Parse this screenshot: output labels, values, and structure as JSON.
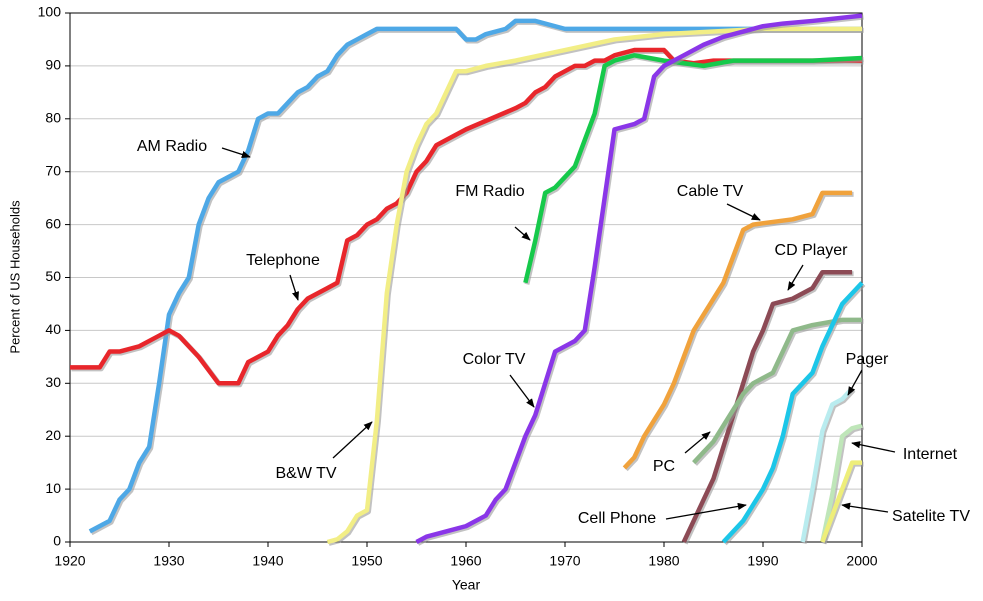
{
  "chart_data": {
    "type": "line",
    "xlabel": "Year",
    "ylabel": "Percent of US Households",
    "xlim": [
      1920,
      2000
    ],
    "xticks": [
      1920,
      1930,
      1940,
      1950,
      1960,
      1970,
      1980,
      1990,
      2000
    ],
    "ylim": [
      0,
      100
    ],
    "yticks": [
      0,
      10,
      20,
      30,
      40,
      50,
      60,
      70,
      80,
      90,
      100
    ],
    "grid": true,
    "series": [
      {
        "name": "AM Radio",
        "color": "#4ea8e6",
        "x": [
          1922,
          1924,
          1925,
          1926,
          1927,
          1928,
          1929,
          1930,
          1931,
          1932,
          1933,
          1934,
          1935,
          1936,
          1937,
          1938,
          1939,
          1940,
          1941,
          1942,
          1943,
          1944,
          1945,
          1946,
          1947,
          1948,
          1949,
          1950,
          1951,
          1955,
          1959,
          1960,
          1961,
          1962,
          1963,
          1964,
          1965,
          1967,
          1970,
          1980,
          2000
        ],
        "values": [
          2,
          4,
          8,
          10,
          15,
          18,
          30,
          43,
          47,
          50,
          60,
          65,
          68,
          69,
          70,
          74,
          80,
          81,
          81,
          83,
          85,
          86,
          88,
          89,
          92,
          94,
          95,
          96,
          97,
          97,
          97,
          95,
          95,
          96,
          96.5,
          97,
          98.5,
          98.5,
          97,
          97,
          97
        ]
      },
      {
        "name": "Telephone",
        "color": "#e8262b",
        "x": [
          1920,
          1923,
          1924,
          1925,
          1927,
          1929,
          1930,
          1931,
          1933,
          1935,
          1937,
          1938,
          1940,
          1941,
          1942,
          1943,
          1944,
          1946,
          1947,
          1948,
          1949,
          1950,
          1951,
          1952,
          1953,
          1954,
          1955,
          1956,
          1957,
          1960,
          1965,
          1966,
          1967,
          1968,
          1969,
          1970,
          1971,
          1972,
          1973,
          1974,
          1975,
          1976,
          1977,
          1980,
          1981,
          1983,
          1985,
          2000
        ],
        "values": [
          33,
          33,
          36,
          36,
          37,
          39,
          40,
          39,
          35,
          30,
          30,
          34,
          36,
          39,
          41,
          44,
          46,
          48,
          49,
          57,
          58,
          60,
          61,
          63,
          64,
          66,
          70,
          72,
          75,
          78,
          82,
          83,
          85,
          86,
          88,
          89,
          90,
          90,
          91,
          91,
          92,
          92.5,
          93,
          93,
          91,
          90.5,
          91,
          91
        ]
      },
      {
        "name": "B&W TV",
        "color": "#f2ee86",
        "x": [
          1946,
          1947,
          1948,
          1949,
          1950,
          1951,
          1952,
          1953,
          1954,
          1955,
          1956,
          1957,
          1958,
          1959,
          1960,
          1962,
          1965,
          1970,
          1975,
          1980,
          1990,
          2000
        ],
        "values": [
          0,
          0.5,
          2,
          5,
          6,
          23,
          47,
          60,
          70,
          75,
          79,
          81,
          85,
          89,
          89,
          90,
          91,
          93,
          95,
          96,
          97,
          97
        ]
      },
      {
        "name": "FM Radio",
        "color": "#16c94b",
        "x": [
          1966,
          1967,
          1968,
          1969,
          1971,
          1972,
          1973,
          1974,
          1975,
          1977,
          1980,
          1984,
          1987,
          1995,
          2000
        ],
        "values": [
          49,
          57,
          66,
          67,
          71,
          76,
          81,
          90,
          91,
          92,
          91,
          90,
          91,
          91,
          91.5
        ]
      },
      {
        "name": "Color TV",
        "color": "#8a36e8",
        "x": [
          1955,
          1956,
          1958,
          1960,
          1962,
          1963,
          1964,
          1965,
          1966,
          1967,
          1968,
          1969,
          1971,
          1972,
          1973,
          1974,
          1975,
          1977,
          1978,
          1979,
          1980,
          1982,
          1984,
          1986,
          1988,
          1990,
          1992,
          1995,
          2000
        ],
        "values": [
          0,
          1,
          2,
          3,
          5,
          8,
          10,
          15,
          20,
          24,
          30,
          36,
          38,
          40,
          52,
          65,
          78,
          79,
          80,
          88,
          90,
          92,
          94,
          95.5,
          96.5,
          97.5,
          98,
          98.5,
          99.5
        ]
      },
      {
        "name": "Cable TV",
        "color": "#f0a23c",
        "x": [
          1976,
          1977,
          1978,
          1979,
          1980,
          1981,
          1982,
          1983,
          1984,
          1985,
          1986,
          1987,
          1988,
          1989,
          1991,
          1993,
          1995,
          1996,
          1999
        ],
        "values": [
          14,
          16,
          20,
          23,
          26,
          30,
          35,
          40,
          43,
          46,
          49,
          54,
          59,
          60,
          60.5,
          61,
          62,
          66,
          66
        ]
      },
      {
        "name": "CD Player",
        "color": "#8c4a55",
        "x": [
          1982,
          1983,
          1984,
          1985,
          1986,
          1987,
          1988,
          1989,
          1990,
          1991,
          1993,
          1995,
          1996,
          1999
        ],
        "values": [
          0,
          4,
          8,
          12,
          18,
          24,
          30,
          36,
          40,
          45,
          46,
          48,
          51,
          51
        ]
      },
      {
        "name": "PC",
        "color": "#8fb98a",
        "x": [
          1983,
          1984,
          1985,
          1986,
          1987,
          1988,
          1989,
          1990,
          1991,
          1993,
          1995,
          1998,
          2000
        ],
        "values": [
          15,
          17,
          19,
          22,
          25,
          28,
          30,
          31,
          32,
          40,
          41,
          42,
          42
        ]
      },
      {
        "name": "Cell Phone",
        "color": "#1cc6e8",
        "x": [
          1986,
          1987,
          1988,
          1989,
          1990,
          1991,
          1992,
          1993,
          1994,
          1995,
          1996,
          1997,
          1998,
          1999,
          2000
        ],
        "values": [
          0,
          2,
          4,
          7,
          10,
          14,
          20,
          28,
          30,
          32,
          37,
          41,
          45,
          47,
          49
        ]
      },
      {
        "name": "Pager",
        "color": "#b9ecef",
        "x": [
          1994,
          1995,
          1996,
          1997,
          1998,
          1999
        ],
        "values": [
          0,
          10,
          21,
          26,
          27,
          29
        ]
      },
      {
        "name": "Internet",
        "color": "#bfe6b9",
        "x": [
          1996,
          1997,
          1998,
          1999,
          2000
        ],
        "values": [
          0,
          9,
          20,
          21.5,
          22
        ]
      },
      {
        "name": "Satelite TV",
        "color": "#eeee7a",
        "x": [
          1996,
          1997,
          1998,
          1999,
          2000
        ],
        "values": [
          0,
          5,
          10,
          15,
          15
        ]
      }
    ]
  }
}
